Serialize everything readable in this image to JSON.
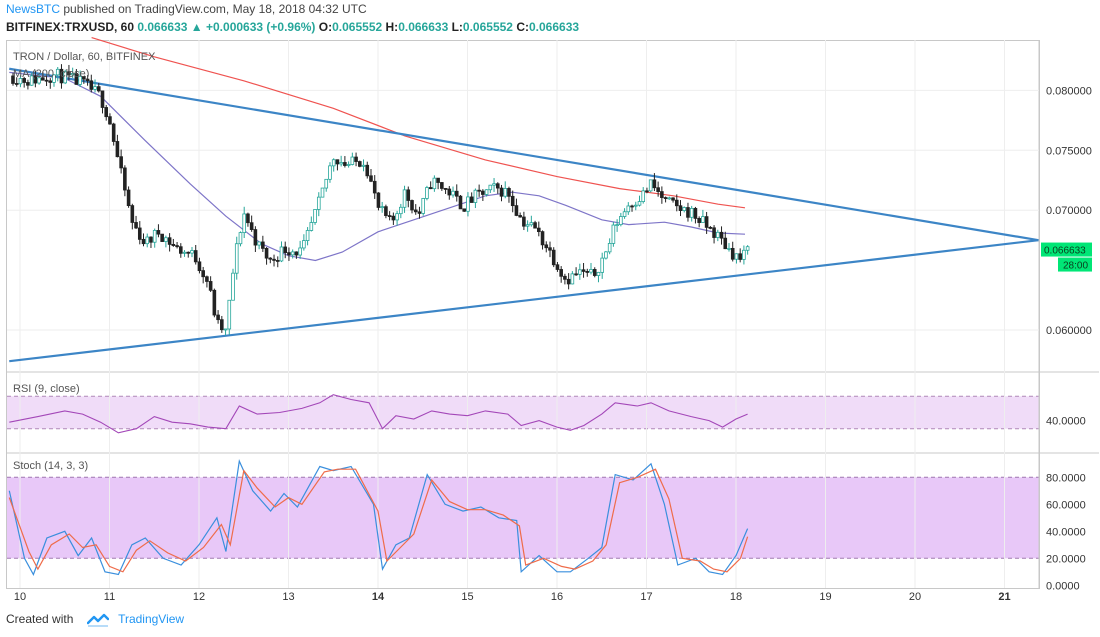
{
  "header": {
    "brand": "NewsBTC",
    "published_text": "published on TradingView.com, May 18, 2018 04:32 UTC",
    "symbol": "BITFINEX:TRXUSD, 60",
    "last": "0.066633",
    "change": "+0.000633 (+0.96%)",
    "o_label": "O:",
    "o": "0.065552",
    "h_label": "H:",
    "h": "0.066633",
    "l_label": "L:",
    "l": "0.065552",
    "c_label": "C:",
    "c": "0.066633"
  },
  "footer": {
    "created_with": "Created with",
    "tradingview": "TradingView"
  },
  "colors": {
    "up": "#26a69a",
    "down": "#222222",
    "ma_red": "#ef5350",
    "ma_purple": "#7e75c8",
    "trendline": "#3c85c6",
    "rsi_line": "#a347b8",
    "stoch_k": "#3a8fdd",
    "stoch_d": "#ef6c4a",
    "rsi_band": "#f0dcf8",
    "stoch_band": "#e8c8f8",
    "last_price_tag": "#00e676"
  },
  "chart_data": [
    {
      "type": "candlestick",
      "title": "TRON / Dollar, 60, BITFINEX",
      "indicator_label": "MA (200, close)",
      "x_tick_labels": [
        "10",
        "11",
        "12",
        "13",
        "14",
        "15",
        "16",
        "17",
        "18",
        "19",
        "20",
        "21"
      ],
      "y_tick_labels": [
        "0.080000",
        "0.075000",
        "0.070000",
        "0.060000"
      ],
      "ylim": [
        0.0565,
        0.0842
      ],
      "last_price_label": "0.066633",
      "countdown_label": "28:00",
      "trendlines": [
        {
          "name": "upper",
          "from": [
            9.88,
            0.0818
          ],
          "to": [
            21.38,
            0.0675
          ]
        },
        {
          "name": "lower",
          "from": [
            9.88,
            0.0574
          ],
          "to": [
            21.38,
            0.0675
          ]
        }
      ],
      "ma200": [
        [
          10.8,
          0.0844
        ],
        [
          11.5,
          0.0828
        ],
        [
          12.5,
          0.0808
        ],
        [
          13.5,
          0.0785
        ],
        [
          14.3,
          0.0762
        ],
        [
          15.2,
          0.0742
        ],
        [
          16.0,
          0.0728
        ],
        [
          16.7,
          0.0718
        ],
        [
          17.3,
          0.0712
        ],
        [
          17.8,
          0.0705
        ],
        [
          18.1,
          0.0702
        ]
      ],
      "ma50": [
        [
          9.88,
          0.0815
        ],
        [
          10.5,
          0.081
        ],
        [
          10.9,
          0.0795
        ],
        [
          11.4,
          0.0758
        ],
        [
          11.9,
          0.0722
        ],
        [
          12.3,
          0.0695
        ],
        [
          12.7,
          0.0672
        ],
        [
          13.0,
          0.0662
        ],
        [
          13.3,
          0.0658
        ],
        [
          13.6,
          0.0665
        ],
        [
          14.0,
          0.0682
        ],
        [
          14.4,
          0.0692
        ],
        [
          14.8,
          0.0702
        ],
        [
          15.2,
          0.0712
        ],
        [
          15.5,
          0.0715
        ],
        [
          15.8,
          0.0712
        ],
        [
          16.1,
          0.0704
        ],
        [
          16.5,
          0.0692
        ],
        [
          16.8,
          0.0688
        ],
        [
          17.2,
          0.069
        ],
        [
          17.5,
          0.0686
        ],
        [
          17.8,
          0.0681
        ],
        [
          18.1,
          0.068
        ]
      ],
      "price_path": [
        [
          9.88,
          0.0812
        ],
        [
          10.1,
          0.0808
        ],
        [
          10.4,
          0.0813
        ],
        [
          10.7,
          0.0806
        ],
        [
          10.9,
          0.0795
        ],
        [
          11.0,
          0.0775
        ],
        [
          11.1,
          0.074
        ],
        [
          11.25,
          0.069
        ],
        [
          11.4,
          0.0672
        ],
        [
          11.55,
          0.0682
        ],
        [
          11.75,
          0.0668
        ],
        [
          11.95,
          0.0662
        ],
        [
          12.1,
          0.064
        ],
        [
          12.2,
          0.0605
        ],
        [
          12.3,
          0.0598
        ],
        [
          12.4,
          0.066
        ],
        [
          12.5,
          0.0698
        ],
        [
          12.65,
          0.0672
        ],
        [
          12.8,
          0.0657
        ],
        [
          12.95,
          0.0668
        ],
        [
          13.15,
          0.0665
        ],
        [
          13.35,
          0.0708
        ],
        [
          13.5,
          0.0745
        ],
        [
          13.65,
          0.0738
        ],
        [
          13.85,
          0.0742
        ],
        [
          14.0,
          0.0702
        ],
        [
          14.15,
          0.0688
        ],
        [
          14.3,
          0.0715
        ],
        [
          14.45,
          0.0695
        ],
        [
          14.6,
          0.0725
        ],
        [
          14.8,
          0.0715
        ],
        [
          14.95,
          0.0703
        ],
        [
          15.1,
          0.0712
        ],
        [
          15.3,
          0.0718
        ],
        [
          15.45,
          0.0715
        ],
        [
          15.6,
          0.0692
        ],
        [
          15.75,
          0.0685
        ],
        [
          15.9,
          0.0668
        ],
        [
          16.0,
          0.0655
        ],
        [
          16.1,
          0.0642
        ],
        [
          16.25,
          0.0648
        ],
        [
          16.4,
          0.0645
        ],
        [
          16.55,
          0.0665
        ],
        [
          16.65,
          0.0688
        ],
        [
          16.8,
          0.0705
        ],
        [
          16.95,
          0.0712
        ],
        [
          17.05,
          0.0722
        ],
        [
          17.2,
          0.0708
        ],
        [
          17.35,
          0.0702
        ],
        [
          17.5,
          0.0698
        ],
        [
          17.65,
          0.0688
        ],
        [
          17.8,
          0.0678
        ],
        [
          17.95,
          0.0665
        ],
        [
          18.05,
          0.0659
        ],
        [
          18.13,
          0.0666
        ]
      ]
    },
    {
      "type": "line",
      "title": "RSI (9, close)",
      "y_tick_labels": [
        "40.0000"
      ],
      "ylim": [
        0,
        100
      ],
      "band": [
        30,
        70
      ],
      "values": [
        [
          9.88,
          38
        ],
        [
          10.2,
          45
        ],
        [
          10.5,
          52
        ],
        [
          10.7,
          48
        ],
        [
          10.9,
          38
        ],
        [
          11.1,
          25
        ],
        [
          11.3,
          30
        ],
        [
          11.5,
          45
        ],
        [
          11.7,
          38
        ],
        [
          11.9,
          36
        ],
        [
          12.1,
          32
        ],
        [
          12.3,
          30
        ],
        [
          12.45,
          58
        ],
        [
          12.65,
          48
        ],
        [
          12.9,
          50
        ],
        [
          13.15,
          55
        ],
        [
          13.35,
          62
        ],
        [
          13.5,
          72
        ],
        [
          13.7,
          66
        ],
        [
          13.9,
          62
        ],
        [
          14.05,
          30
        ],
        [
          14.2,
          46
        ],
        [
          14.4,
          42
        ],
        [
          14.6,
          52
        ],
        [
          14.8,
          48
        ],
        [
          15.0,
          46
        ],
        [
          15.2,
          52
        ],
        [
          15.45,
          48
        ],
        [
          15.6,
          34
        ],
        [
          15.8,
          40
        ],
        [
          16.0,
          32
        ],
        [
          16.15,
          28
        ],
        [
          16.3,
          34
        ],
        [
          16.5,
          48
        ],
        [
          16.65,
          62
        ],
        [
          16.9,
          58
        ],
        [
          17.05,
          62
        ],
        [
          17.25,
          52
        ],
        [
          17.5,
          45
        ],
        [
          17.7,
          40
        ],
        [
          17.85,
          32
        ],
        [
          18.0,
          42
        ],
        [
          18.13,
          48
        ]
      ]
    },
    {
      "type": "line",
      "title": "Stoch (14, 3, 3)",
      "y_tick_labels": [
        "80.0000",
        "60.0000",
        "40.0000",
        "20.0000",
        "0.0000"
      ],
      "ylim": [
        -2,
        98
      ],
      "band": [
        20,
        80
      ],
      "series": [
        {
          "name": "%K",
          "values": [
            [
              9.88,
              70
            ],
            [
              10.05,
              20
            ],
            [
              10.15,
              8
            ],
            [
              10.3,
              35
            ],
            [
              10.5,
              40
            ],
            [
              10.65,
              22
            ],
            [
              10.8,
              35
            ],
            [
              10.95,
              10
            ],
            [
              11.1,
              8
            ],
            [
              11.25,
              30
            ],
            [
              11.4,
              35
            ],
            [
              11.6,
              20
            ],
            [
              11.8,
              15
            ],
            [
              12.0,
              30
            ],
            [
              12.2,
              50
            ],
            [
              12.3,
              25
            ],
            [
              12.45,
              92
            ],
            [
              12.6,
              70
            ],
            [
              12.8,
              55
            ],
            [
              12.95,
              68
            ],
            [
              13.1,
              58
            ],
            [
              13.35,
              88
            ],
            [
              13.5,
              85
            ],
            [
              13.7,
              88
            ],
            [
              13.95,
              60
            ],
            [
              14.05,
              12
            ],
            [
              14.2,
              30
            ],
            [
              14.35,
              35
            ],
            [
              14.55,
              82
            ],
            [
              14.75,
              60
            ],
            [
              14.95,
              55
            ],
            [
              15.15,
              58
            ],
            [
              15.35,
              50
            ],
            [
              15.55,
              48
            ],
            [
              15.6,
              10
            ],
            [
              15.8,
              22
            ],
            [
              16.0,
              10
            ],
            [
              16.15,
              10
            ],
            [
              16.35,
              20
            ],
            [
              16.5,
              28
            ],
            [
              16.65,
              82
            ],
            [
              16.85,
              78
            ],
            [
              17.05,
              90
            ],
            [
              17.2,
              60
            ],
            [
              17.35,
              15
            ],
            [
              17.55,
              20
            ],
            [
              17.7,
              10
            ],
            [
              17.85,
              8
            ],
            [
              18.0,
              22
            ],
            [
              18.13,
              42
            ]
          ]
        },
        {
          "name": "%D",
          "values": [
            [
              9.88,
              65
            ],
            [
              10.1,
              25
            ],
            [
              10.2,
              12
            ],
            [
              10.35,
              30
            ],
            [
              10.55,
              38
            ],
            [
              10.7,
              28
            ],
            [
              10.85,
              30
            ],
            [
              11.0,
              14
            ],
            [
              11.15,
              10
            ],
            [
              11.3,
              26
            ],
            [
              11.45,
              33
            ],
            [
              11.65,
              24
            ],
            [
              11.85,
              18
            ],
            [
              12.05,
              28
            ],
            [
              12.25,
              45
            ],
            [
              12.35,
              30
            ],
            [
              12.5,
              85
            ],
            [
              12.65,
              72
            ],
            [
              12.85,
              58
            ],
            [
              13.0,
              65
            ],
            [
              13.15,
              60
            ],
            [
              13.4,
              84
            ],
            [
              13.55,
              86
            ],
            [
              13.75,
              86
            ],
            [
              14.0,
              55
            ],
            [
              14.1,
              18
            ],
            [
              14.25,
              28
            ],
            [
              14.4,
              38
            ],
            [
              14.6,
              78
            ],
            [
              14.8,
              62
            ],
            [
              15.0,
              56
            ],
            [
              15.2,
              56
            ],
            [
              15.4,
              52
            ],
            [
              15.58,
              44
            ],
            [
              15.65,
              15
            ],
            [
              15.85,
              20
            ],
            [
              16.05,
              14
            ],
            [
              16.2,
              12
            ],
            [
              16.4,
              18
            ],
            [
              16.55,
              30
            ],
            [
              16.7,
              76
            ],
            [
              16.9,
              80
            ],
            [
              17.1,
              86
            ],
            [
              17.25,
              64
            ],
            [
              17.4,
              20
            ],
            [
              17.6,
              18
            ],
            [
              17.75,
              12
            ],
            [
              17.9,
              10
            ],
            [
              18.05,
              20
            ],
            [
              18.13,
              36
            ]
          ]
        }
      ]
    }
  ]
}
